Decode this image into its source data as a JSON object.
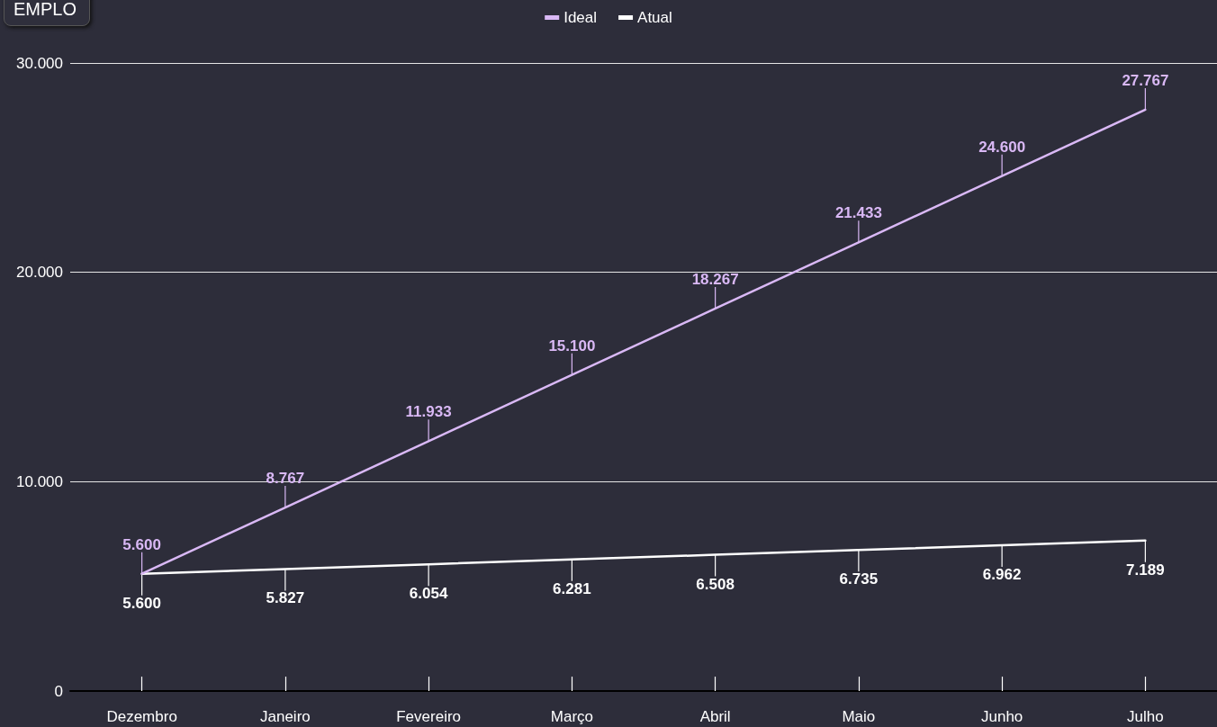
{
  "chart_data": {
    "type": "line",
    "categories": [
      "Dezembro",
      "Janeiro",
      "Fevereiro",
      "Março",
      "Abril",
      "Maio",
      "Junho",
      "Julho"
    ],
    "series": [
      {
        "name": "Ideal",
        "color": "#d9b8f5",
        "values": [
          5600,
          8767,
          11933,
          15100,
          18267,
          21433,
          24600,
          27767
        ],
        "value_labels": [
          "5.600",
          "8.767",
          "11.933",
          "15.100",
          "18.267",
          "21.433",
          "24.600",
          "27.767"
        ]
      },
      {
        "name": "Atual",
        "color": "#ffffff",
        "values": [
          5600,
          5827,
          6054,
          6281,
          6508,
          6735,
          6962,
          7189
        ],
        "value_labels": [
          "5.600",
          "5.827",
          "6.054",
          "6.281",
          "6.508",
          "6.735",
          "6.962",
          "7.189"
        ]
      }
    ],
    "ylim": [
      0,
      30000
    ],
    "yticks": [
      {
        "value": 0,
        "label": "0"
      },
      {
        "value": 10000,
        "label": "10.000"
      },
      {
        "value": 20000,
        "label": "20.000"
      },
      {
        "value": 30000,
        "label": "30.000"
      }
    ],
    "grid": "y",
    "legend": "top",
    "marker": "none",
    "line_style": "solid",
    "annotations": [
      "EMPLO"
    ]
  }
}
